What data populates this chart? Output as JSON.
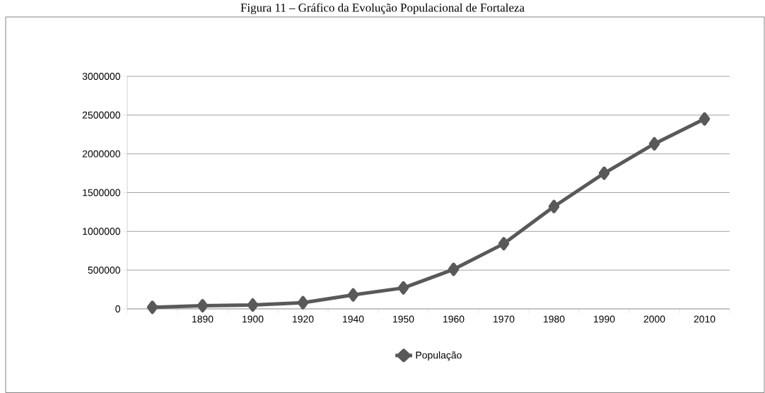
{
  "chart_data": {
    "type": "line",
    "title": "Figura 11 – Gráfico da Evolução Populacional de Fortaleza",
    "categories": [
      null,
      "1890",
      "1900",
      "1920",
      "1940",
      "1950",
      "1960",
      "1970",
      "1980",
      "1990",
      "2000",
      "2010"
    ],
    "series": [
      {
        "name": "População",
        "color": "#595959",
        "values": [
          20000,
          40000,
          50000,
          80000,
          180000,
          270000,
          510000,
          840000,
          1320000,
          1750000,
          2130000,
          2450000
        ]
      }
    ],
    "ylim": [
      0,
      3000000
    ],
    "yticks": [
      0,
      500000,
      1000000,
      1500000,
      2000000,
      2500000,
      3000000
    ],
    "grid": "y",
    "legend": "bottom",
    "marker": "diamond",
    "line_style": "solid"
  }
}
